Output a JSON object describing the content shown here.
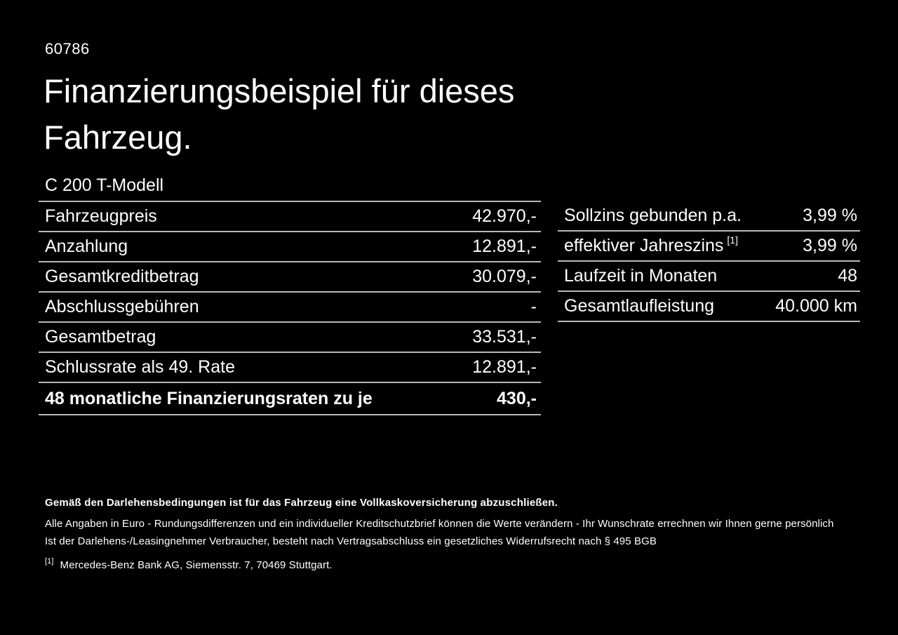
{
  "page": {
    "id_number": "60786",
    "title_line1": "Finanzierungsbeispiel für dieses",
    "title_line2": "Fahrzeug.",
    "model": "C 200 T-Modell"
  },
  "colors": {
    "background": "#000000",
    "text": "#ffffff",
    "divider": "#b9b9b9"
  },
  "left_table": {
    "rows": [
      {
        "label": "Fahrzeugpreis",
        "value": "42.970,-"
      },
      {
        "label": "Anzahlung",
        "value": "12.891,-"
      },
      {
        "label": "Gesamtkreditbetrag",
        "value": "30.079,-"
      },
      {
        "label": "Abschlussgebühren",
        "value": "-"
      },
      {
        "label": "Gesamtbetrag",
        "value": "33.531,-"
      },
      {
        "label": "Schlussrate als 49. Rate",
        "value": "12.891,-"
      },
      {
        "label": "48 monatliche Finanzierungsraten zu je",
        "value": "430,-"
      }
    ]
  },
  "right_table": {
    "rows": [
      {
        "label": "Sollzins gebunden p.a.",
        "sup": "",
        "value": "3,99 %"
      },
      {
        "label": "effektiver Jahreszins",
        "sup": "[1]",
        "value": "3,99 %"
      },
      {
        "label": "Laufzeit in Monaten",
        "sup": "",
        "value": "48"
      },
      {
        "label": "Gesamtlaufleistung",
        "sup": "",
        "value": "40.000 km"
      }
    ]
  },
  "footer": {
    "bold_note": "Gemäß den Darlehensbedingungen ist für das Fahrzeug eine Vollkaskoversicherung abzuschließen.",
    "note1": "Alle Angaben in Euro - Rundungsdifferenzen und ein individueller Kreditschutzbrief können die Werte verändern - Ihr Wunschrate errechnen wir Ihnen gerne persönlich",
    "note2": "Ist der Darlehens-/Leasingnehmer Verbraucher, besteht nach Vertragsabschluss ein gesetzliches Widerrufsrecht nach § 495 BGB",
    "footnote_marker": "[1]",
    "footnote_text": "Mercedes-Benz Bank AG, Siemensstr. 7, 70469 Stuttgart."
  }
}
